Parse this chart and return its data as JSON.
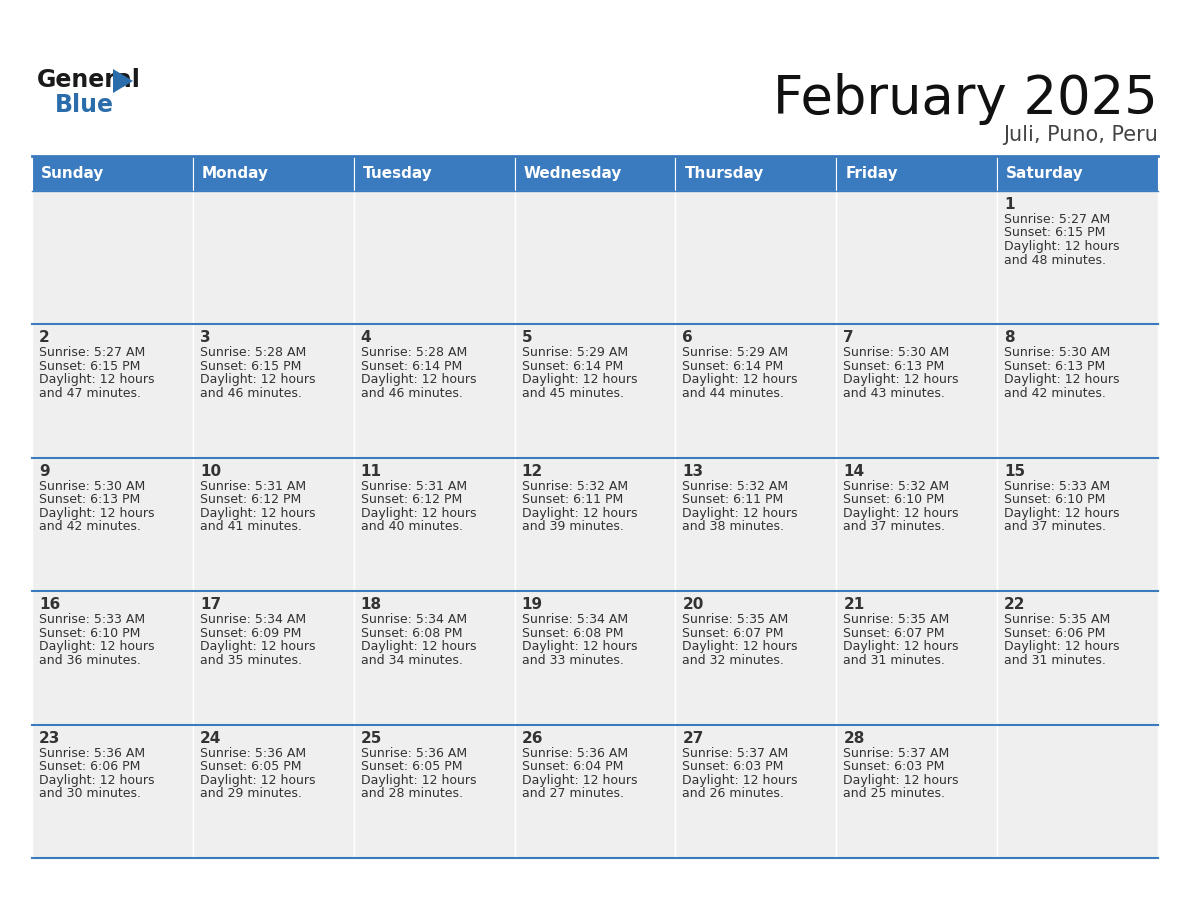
{
  "title": "February 2025",
  "subtitle": "Juli, Puno, Peru",
  "header_color": "#3a7abf",
  "header_text_color": "#ffffff",
  "cell_bg_color": "#efefef",
  "cell_text_color": "#333333",
  "days_of_week": [
    "Sunday",
    "Monday",
    "Tuesday",
    "Wednesday",
    "Thursday",
    "Friday",
    "Saturday"
  ],
  "calendar_data": [
    [
      {
        "day": "",
        "sunrise": "",
        "sunset": "",
        "daylight": ""
      },
      {
        "day": "",
        "sunrise": "",
        "sunset": "",
        "daylight": ""
      },
      {
        "day": "",
        "sunrise": "",
        "sunset": "",
        "daylight": ""
      },
      {
        "day": "",
        "sunrise": "",
        "sunset": "",
        "daylight": ""
      },
      {
        "day": "",
        "sunrise": "",
        "sunset": "",
        "daylight": ""
      },
      {
        "day": "",
        "sunrise": "",
        "sunset": "",
        "daylight": ""
      },
      {
        "day": "1",
        "sunrise": "5:27 AM",
        "sunset": "6:15 PM",
        "daylight": "12 hours and 48 minutes."
      }
    ],
    [
      {
        "day": "2",
        "sunrise": "5:27 AM",
        "sunset": "6:15 PM",
        "daylight": "12 hours and 47 minutes."
      },
      {
        "day": "3",
        "sunrise": "5:28 AM",
        "sunset": "6:15 PM",
        "daylight": "12 hours and 46 minutes."
      },
      {
        "day": "4",
        "sunrise": "5:28 AM",
        "sunset": "6:14 PM",
        "daylight": "12 hours and 46 minutes."
      },
      {
        "day": "5",
        "sunrise": "5:29 AM",
        "sunset": "6:14 PM",
        "daylight": "12 hours and 45 minutes."
      },
      {
        "day": "6",
        "sunrise": "5:29 AM",
        "sunset": "6:14 PM",
        "daylight": "12 hours and 44 minutes."
      },
      {
        "day": "7",
        "sunrise": "5:30 AM",
        "sunset": "6:13 PM",
        "daylight": "12 hours and 43 minutes."
      },
      {
        "day": "8",
        "sunrise": "5:30 AM",
        "sunset": "6:13 PM",
        "daylight": "12 hours and 42 minutes."
      }
    ],
    [
      {
        "day": "9",
        "sunrise": "5:30 AM",
        "sunset": "6:13 PM",
        "daylight": "12 hours and 42 minutes."
      },
      {
        "day": "10",
        "sunrise": "5:31 AM",
        "sunset": "6:12 PM",
        "daylight": "12 hours and 41 minutes."
      },
      {
        "day": "11",
        "sunrise": "5:31 AM",
        "sunset": "6:12 PM",
        "daylight": "12 hours and 40 minutes."
      },
      {
        "day": "12",
        "sunrise": "5:32 AM",
        "sunset": "6:11 PM",
        "daylight": "12 hours and 39 minutes."
      },
      {
        "day": "13",
        "sunrise": "5:32 AM",
        "sunset": "6:11 PM",
        "daylight": "12 hours and 38 minutes."
      },
      {
        "day": "14",
        "sunrise": "5:32 AM",
        "sunset": "6:10 PM",
        "daylight": "12 hours and 37 minutes."
      },
      {
        "day": "15",
        "sunrise": "5:33 AM",
        "sunset": "6:10 PM",
        "daylight": "12 hours and 37 minutes."
      }
    ],
    [
      {
        "day": "16",
        "sunrise": "5:33 AM",
        "sunset": "6:10 PM",
        "daylight": "12 hours and 36 minutes."
      },
      {
        "day": "17",
        "sunrise": "5:34 AM",
        "sunset": "6:09 PM",
        "daylight": "12 hours and 35 minutes."
      },
      {
        "day": "18",
        "sunrise": "5:34 AM",
        "sunset": "6:08 PM",
        "daylight": "12 hours and 34 minutes."
      },
      {
        "day": "19",
        "sunrise": "5:34 AM",
        "sunset": "6:08 PM",
        "daylight": "12 hours and 33 minutes."
      },
      {
        "day": "20",
        "sunrise": "5:35 AM",
        "sunset": "6:07 PM",
        "daylight": "12 hours and 32 minutes."
      },
      {
        "day": "21",
        "sunrise": "5:35 AM",
        "sunset": "6:07 PM",
        "daylight": "12 hours and 31 minutes."
      },
      {
        "day": "22",
        "sunrise": "5:35 AM",
        "sunset": "6:06 PM",
        "daylight": "12 hours and 31 minutes."
      }
    ],
    [
      {
        "day": "23",
        "sunrise": "5:36 AM",
        "sunset": "6:06 PM",
        "daylight": "12 hours and 30 minutes."
      },
      {
        "day": "24",
        "sunrise": "5:36 AM",
        "sunset": "6:05 PM",
        "daylight": "12 hours and 29 minutes."
      },
      {
        "day": "25",
        "sunrise": "5:36 AM",
        "sunset": "6:05 PM",
        "daylight": "12 hours and 28 minutes."
      },
      {
        "day": "26",
        "sunrise": "5:36 AM",
        "sunset": "6:04 PM",
        "daylight": "12 hours and 27 minutes."
      },
      {
        "day": "27",
        "sunrise": "5:37 AM",
        "sunset": "6:03 PM",
        "daylight": "12 hours and 26 minutes."
      },
      {
        "day": "28",
        "sunrise": "5:37 AM",
        "sunset": "6:03 PM",
        "daylight": "12 hours and 25 minutes."
      },
      {
        "day": "",
        "sunrise": "",
        "sunset": "",
        "daylight": ""
      }
    ]
  ],
  "title_fontsize": 38,
  "subtitle_fontsize": 15,
  "header_fontsize": 11,
  "day_num_fontsize": 11,
  "cell_text_fontsize": 9,
  "logo_color_general": "#1a1a1a",
  "logo_color_blue": "#2a6daa",
  "logo_color_triangle": "#2a6daa"
}
